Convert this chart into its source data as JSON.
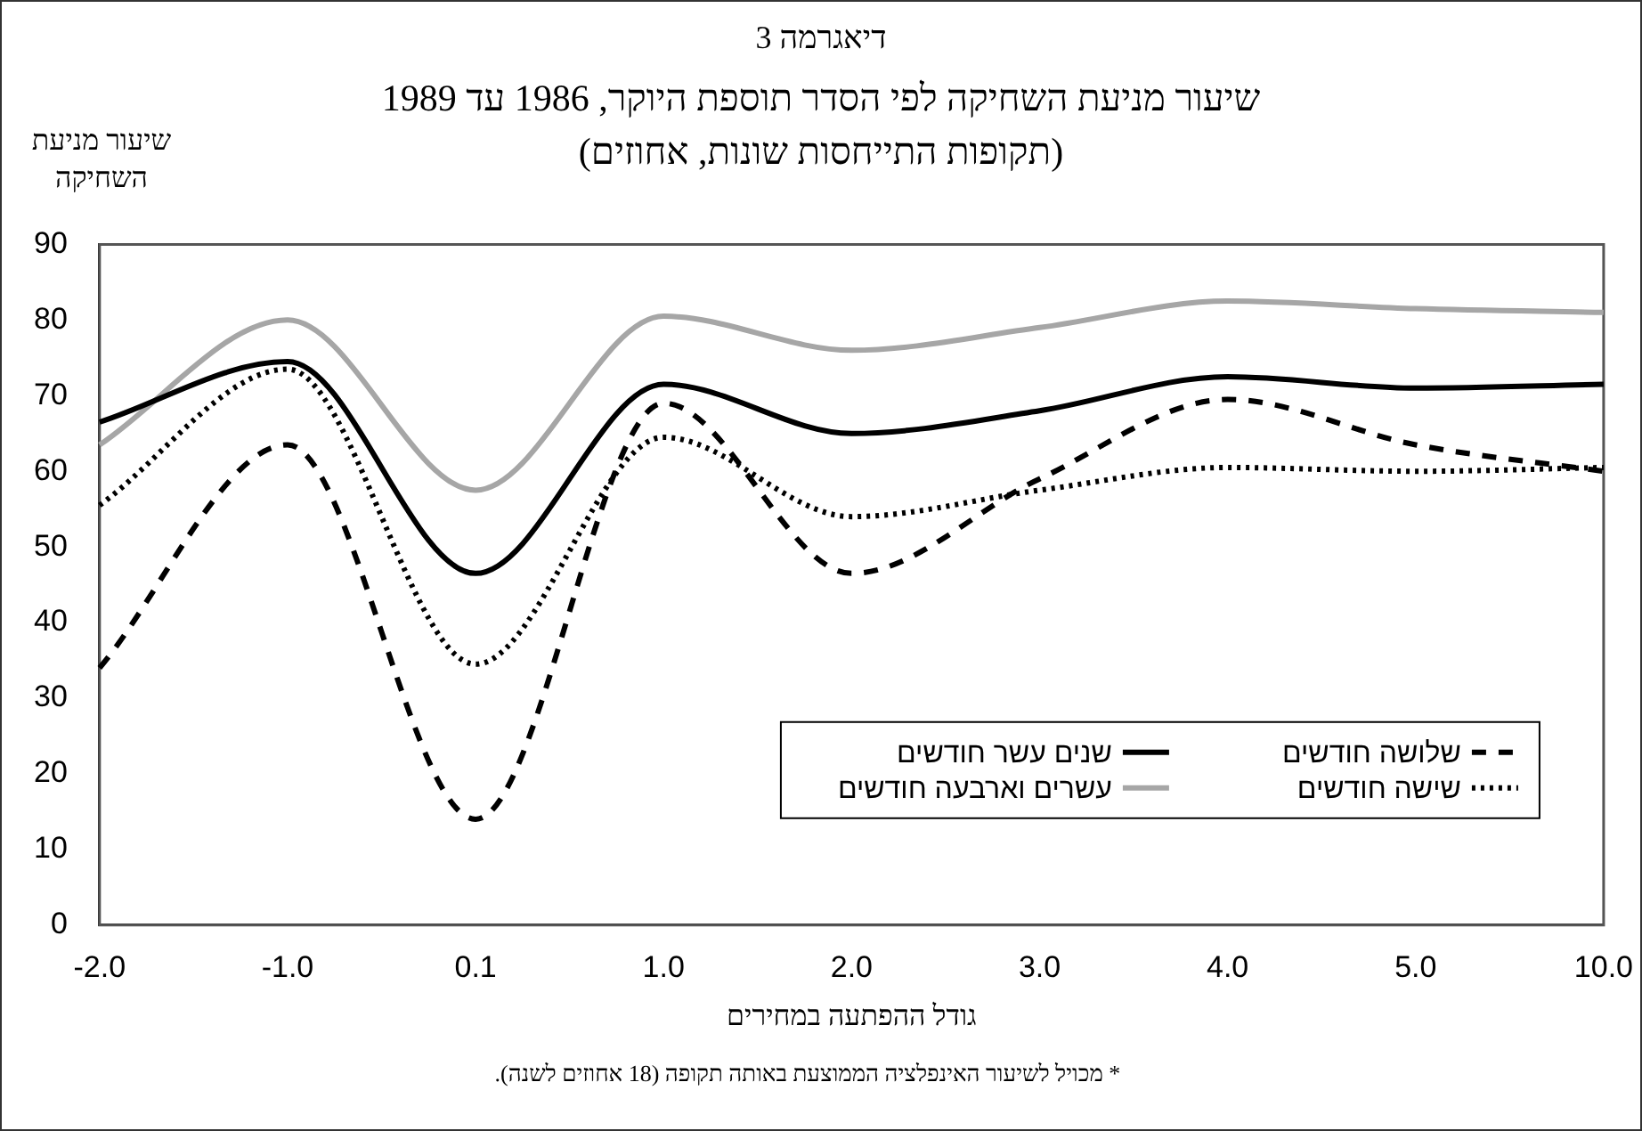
{
  "chart_data": {
    "type": "line",
    "title": "שיעור מניעת השחיקה לפי הסדר תוספת היוקר, 1986 עד 1989",
    "subtitle": "(תקופות התייחסות שונות, אחוזים)",
    "ylabel": "שיעור מניעת השחיקה",
    "xlabel": "גודל ההפתעה במחירים",
    "annotations": [
      "דיאגרמה 3",
      "* מכויל לשיעור האינפלציה הממוצעת באותה תקופה (18 אחוזים לשנה)."
    ],
    "categories": [
      "-2.0",
      "-1.0",
      "0.1",
      "1.0",
      "2.0",
      "3.0",
      "4.0",
      "5.0",
      "10.0"
    ],
    "series": [
      {
        "name": "שלושה חודשים",
        "color": "#000000",
        "line_style": "dashed",
        "values": [
          34,
          63.5,
          14,
          69,
          46.5,
          59,
          69.5,
          63.5,
          60
        ]
      },
      {
        "name": "שישה חודשים",
        "color": "#000000",
        "line_style": "dotted",
        "values": [
          55.5,
          73.5,
          34.5,
          64.5,
          54,
          57.5,
          60.5,
          60,
          60.5
        ]
      },
      {
        "name": "שנים עשר חודשים",
        "color": "#000000",
        "line_style": "solid",
        "values": [
          66.5,
          74.5,
          46.5,
          71.5,
          65,
          68,
          72.5,
          71,
          71.5
        ]
      },
      {
        "name": "עשרים וארבעה חודשים",
        "color": "#a6a6a6",
        "line_style": "solid",
        "values": [
          63.5,
          80,
          57.5,
          80.5,
          76,
          79,
          82.5,
          81.5,
          81
        ]
      }
    ],
    "ylim": [
      0,
      90
    ],
    "yticks": [
      0,
      10,
      20,
      30,
      40,
      50,
      60,
      70,
      80,
      90
    ],
    "grid": false,
    "legend": "bottom right",
    "marker": "none"
  }
}
